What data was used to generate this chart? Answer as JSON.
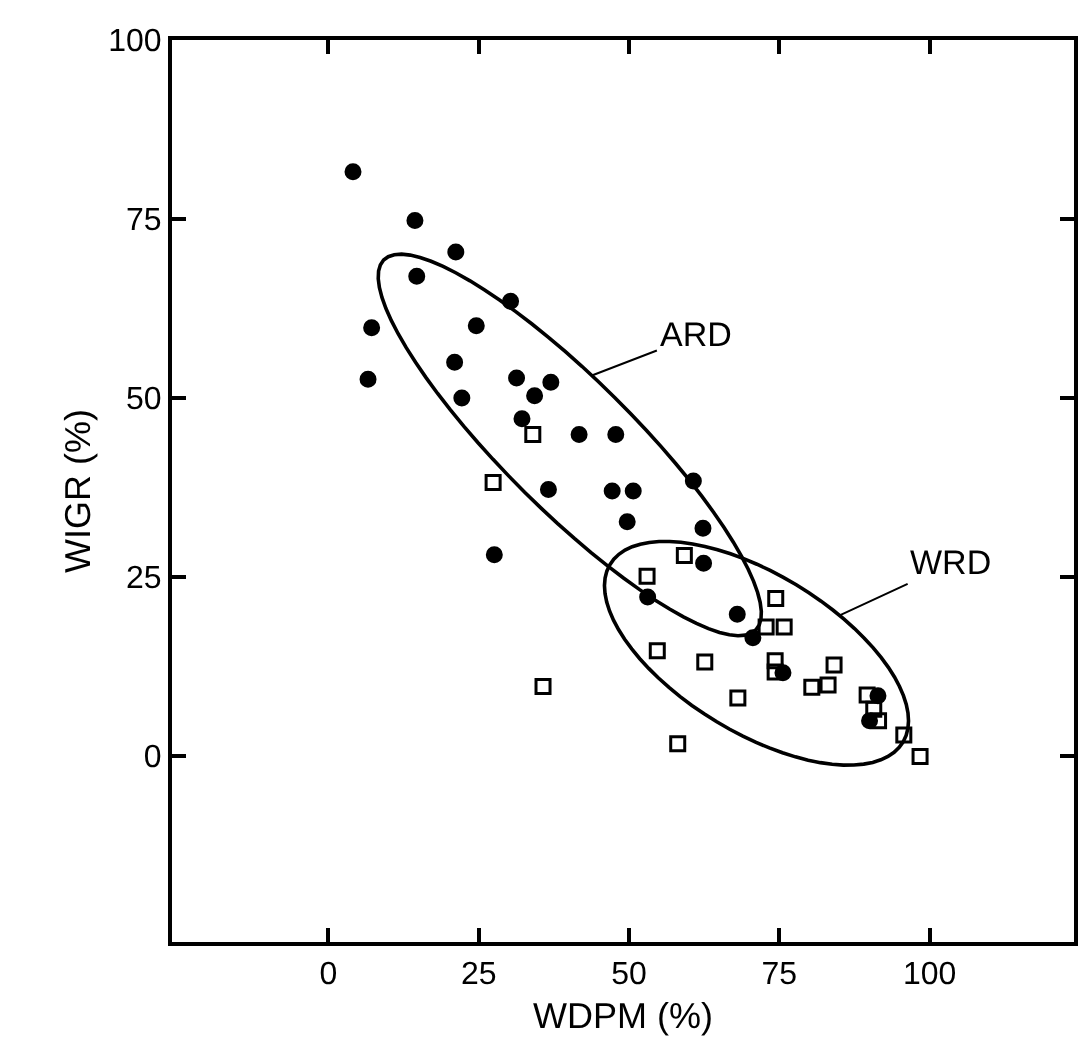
{
  "chart_data": {
    "type": "scatter",
    "xlabel": "WDPM (%)",
    "ylabel": "WIGR (%)",
    "xlim": [
      -26,
      124
    ],
    "ylim": [
      -26,
      100
    ],
    "xticks": [
      0,
      25,
      50,
      75,
      100
    ],
    "yticks": [
      0,
      25,
      50,
      75,
      100
    ],
    "series": [
      {
        "marker": "circle",
        "color": "#000000",
        "x": [
          4.1,
          14.4,
          21.2,
          14.7,
          30.3,
          7.2,
          24.6,
          21.0,
          6.6,
          31.3,
          37.0,
          34.3,
          22.2,
          32.2,
          41.7,
          47.8,
          36.6,
          47.2,
          50.7,
          49.7,
          60.7,
          62.3,
          27.6,
          62.4,
          53.1,
          68.0,
          70.6,
          75.6,
          91.4,
          90.0
        ],
        "values": [
          81.6,
          74.8,
          70.4,
          67.0,
          63.5,
          59.8,
          60.1,
          55.0,
          52.6,
          52.8,
          52.2,
          50.3,
          50.0,
          47.1,
          44.9,
          44.9,
          37.2,
          37.0,
          37.0,
          32.7,
          38.4,
          31.8,
          28.1,
          26.9,
          22.2,
          19.8,
          16.5,
          11.6,
          8.4,
          4.9
        ]
      },
      {
        "marker": "square",
        "color": "#000000",
        "x": [
          34.0,
          27.4,
          59.2,
          53.0,
          74.4,
          72.8,
          75.8,
          54.7,
          62.6,
          74.3,
          74.3,
          84.1,
          80.4,
          83.1,
          89.6,
          90.7,
          91.5,
          68.1,
          35.7,
          58.1,
          95.7,
          98.4
        ],
        "values": [
          44.9,
          38.2,
          28.0,
          25.1,
          22.0,
          18.0,
          18.0,
          14.7,
          13.1,
          13.3,
          11.7,
          12.7,
          9.6,
          9.9,
          8.5,
          6.5,
          4.9,
          8.1,
          9.7,
          1.7,
          2.9,
          -0.1
        ]
      }
    ],
    "annotations": [
      "ARD",
      "WRD"
    ]
  }
}
